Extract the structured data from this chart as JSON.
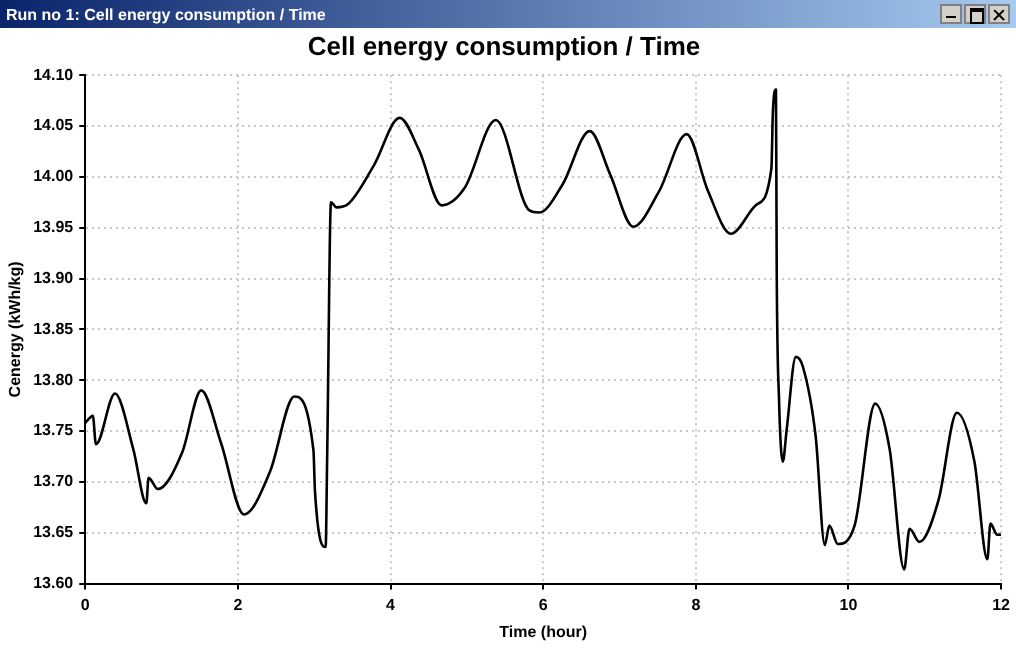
{
  "chart_data": {
    "type": "line",
    "title": "Cell energy consumption / Time",
    "xlabel": "Time (hour)",
    "ylabel": "Cenergy (kWh/kg)",
    "annotations": [
      "Run no 1: Cell energy consumption / Time"
    ],
    "x": [
      0,
      0.1,
      0.14,
      0.39,
      0.63,
      0.8,
      0.83,
      0.95,
      1.27,
      1.52,
      1.78,
      2.08,
      2.42,
      2.74,
      2.99,
      3.01,
      3.15,
      3.17,
      3.22,
      3.29,
      3.44,
      3.78,
      4.12,
      4.37,
      4.67,
      4.97,
      5.38,
      5.82,
      5.95,
      6.25,
      6.61,
      6.88,
      7.18,
      7.52,
      7.88,
      8.16,
      8.46,
      8.8,
      8.99,
      9.01,
      9.05,
      9.06,
      9.09,
      9.14,
      9.19,
      9.31,
      9.4,
      9.57,
      9.69,
      9.75,
      9.86,
      10.08,
      10.35,
      10.54,
      10.73,
      10.8,
      10.93,
      11.18,
      11.42,
      11.65,
      11.82,
      11.86,
      11.95,
      12
    ],
    "series": [
      {
        "color": "#000000",
        "values": [
          13.758,
          13.765,
          13.737,
          13.787,
          13.732,
          13.679,
          13.704,
          13.693,
          13.729,
          13.79,
          13.738,
          13.668,
          13.71,
          13.784,
          13.731,
          13.691,
          13.636,
          13.726,
          13.975,
          13.97,
          13.973,
          14.011,
          14.058,
          14.027,
          13.972,
          13.989,
          14.056,
          13.967,
          13.965,
          13.992,
          14.045,
          14.002,
          13.951,
          13.986,
          14.042,
          13.986,
          13.944,
          13.973,
          14.008,
          14.064,
          14.086,
          13.908,
          13.782,
          13.72,
          13.751,
          13.823,
          13.814,
          13.745,
          13.638,
          13.657,
          13.639,
          13.657,
          13.777,
          13.732,
          13.614,
          13.654,
          13.641,
          13.682,
          13.768,
          13.72,
          13.624,
          13.659,
          13.648,
          13.648
        ]
      }
    ],
    "xlim": [
      0,
      12
    ],
    "xticks": [
      0,
      2,
      4,
      6,
      8,
      10,
      12
    ],
    "ylim": [
      13.6,
      14.1
    ],
    "yticks": [
      {
        "value": 13.6,
        "label": "13.60"
      },
      13.65,
      {
        "value": 13.7,
        "label": "13.70"
      },
      13.75,
      {
        "value": 13.8,
        "label": "13.80"
      },
      13.85,
      {
        "value": 13.9,
        "label": "13.90"
      },
      13.95,
      {
        "value": 14.0,
        "label": "14.00"
      },
      14.05,
      {
        "value": 14.1,
        "label": "14.10"
      }
    ],
    "grid": true,
    "legend": false,
    "marker": "none",
    "line_style": "solid"
  }
}
